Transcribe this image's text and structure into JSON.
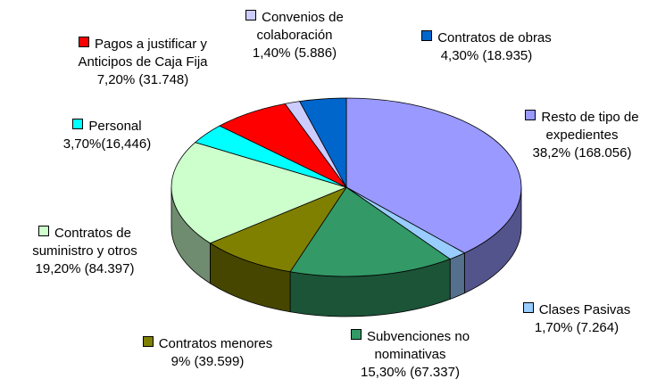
{
  "chart_data": {
    "type": "pie3d",
    "categories": [
      "Resto de tipo de\nexpedientes",
      "Clases Pasivas",
      "Subvenciones no\nnominativas",
      "Contratos menores",
      "Contratos de\nsuministro y otros",
      "Personal",
      "Pagos a  justificar y\nAnticipos de Caja Fija",
      "Convenios de\ncolaboración",
      "Contratos de obras"
    ],
    "values": [
      38.2,
      1.7,
      15.3,
      9,
      19.2,
      3.7,
      7.2,
      1.4,
      4.3
    ],
    "value_labels": [
      "38,2% (168.056)",
      "1,70% (7.264)",
      "15,30% (67.337)",
      "9% (39.599)",
      "19,20% (84.397)",
      "3,70%(16,446)",
      "7,20% (31.748)",
      "1,40% (5.886)",
      "4,30% (18.935)"
    ],
    "colors": [
      "#9999ff",
      "#99ccff",
      "#339966",
      "#808000",
      "#ccffcc",
      "#00ffff",
      "#ff0000",
      "#ccccff",
      "#0066cc"
    ]
  }
}
